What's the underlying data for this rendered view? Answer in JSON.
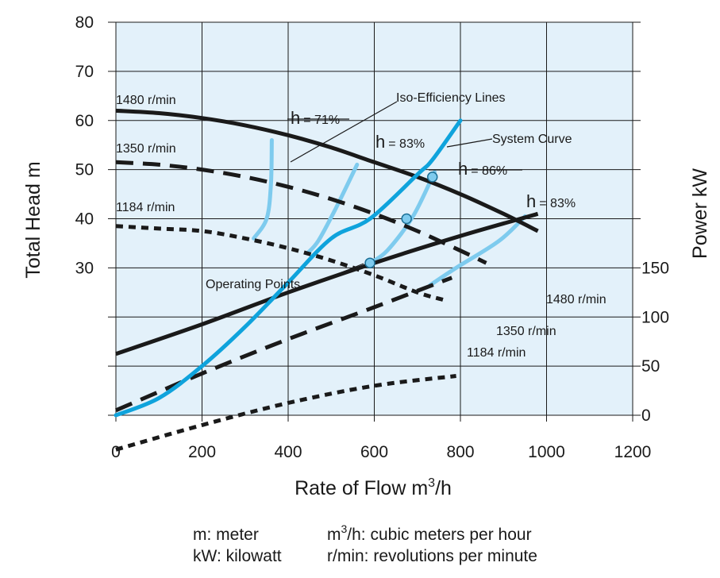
{
  "chart_data": {
    "type": "line",
    "title": "",
    "xlabel": "Rate of Flow m",
    "xlabel_sup": "3",
    "xlabel_tail": "/h",
    "ylabel": "Total Head m",
    "y2label": "Power kW",
    "xlim": [
      0,
      1200
    ],
    "ylim": [
      0,
      80
    ],
    "x_ticks": [
      "0",
      "200",
      "400",
      "600",
      "800",
      "1000",
      "1200"
    ],
    "y_ticks": [
      "30",
      "40",
      "50",
      "60",
      "70",
      "80"
    ],
    "y2_ticks": [
      "0",
      "50",
      "100",
      "150"
    ],
    "grid": true,
    "background": "#e3f1fa",
    "colors": {
      "speed": "#1a1a1a",
      "system": "#0fa3dc",
      "iso": "#7ecbee",
      "grid": "#1a1a1a"
    },
    "head_curves": [
      {
        "name": "1480 r/min",
        "style": "solid",
        "points": [
          [
            0,
            62
          ],
          [
            100,
            61.5
          ],
          [
            200,
            60.5
          ],
          [
            300,
            59
          ],
          [
            400,
            57
          ],
          [
            500,
            54.5
          ],
          [
            600,
            51.5
          ],
          [
            700,
            48.5
          ],
          [
            800,
            45
          ],
          [
            900,
            41
          ],
          [
            980,
            37.5
          ]
        ]
      },
      {
        "name": "1350 r/min",
        "style": "dashed",
        "points": [
          [
            0,
            51.5
          ],
          [
            100,
            51
          ],
          [
            200,
            50
          ],
          [
            300,
            48.5
          ],
          [
            400,
            46.5
          ],
          [
            500,
            44
          ],
          [
            600,
            41
          ],
          [
            700,
            37.5
          ],
          [
            800,
            33.5
          ],
          [
            860,
            31
          ]
        ]
      },
      {
        "name": "1184 r/min",
        "style": "dotted",
        "points": [
          [
            0,
            38.5
          ],
          [
            100,
            38
          ],
          [
            200,
            37.5
          ],
          [
            300,
            36
          ],
          [
            400,
            34
          ],
          [
            500,
            31.5
          ],
          [
            600,
            28.5
          ],
          [
            700,
            25
          ],
          [
            760,
            23.5
          ]
        ]
      }
    ],
    "power_curves": [
      {
        "name": "1480 r/min",
        "style": "solid",
        "points": [
          [
            0,
            12.5
          ],
          [
            200,
            18.5
          ],
          [
            400,
            25
          ],
          [
            600,
            31
          ],
          [
            800,
            36.5
          ],
          [
            980,
            41
          ]
        ]
      },
      {
        "name": "1350 r/min",
        "style": "dashed",
        "points": [
          [
            0,
            1
          ],
          [
            200,
            8.5
          ],
          [
            400,
            15.5
          ],
          [
            600,
            22
          ],
          [
            780,
            28
          ]
        ]
      },
      {
        "name": "1184 r/min",
        "style": "dotted",
        "points": [
          [
            0,
            -7
          ],
          [
            200,
            -2
          ],
          [
            400,
            2.5
          ],
          [
            600,
            6
          ],
          [
            790,
            8
          ]
        ]
      }
    ],
    "system_curve": {
      "name": "System Curve",
      "points": [
        [
          0,
          0
        ],
        [
          100,
          3.5
        ],
        [
          200,
          10
        ],
        [
          300,
          18
        ],
        [
          400,
          27
        ],
        [
          500,
          36
        ],
        [
          590,
          40
        ],
        [
          700,
          49
        ],
        [
          735,
          52
        ],
        [
          800,
          60
        ]
      ]
    },
    "iso_efficiency_lines": [
      {
        "label": "71%",
        "points": [
          [
            320,
            36
          ],
          [
            350,
            40
          ],
          [
            360,
            47
          ],
          [
            362,
            56
          ]
        ]
      },
      {
        "label": "83%",
        "points": [
          [
            445,
            33
          ],
          [
            470,
            35.5
          ],
          [
            510,
            42
          ],
          [
            560,
            51
          ]
        ]
      },
      {
        "label": "86%",
        "points": [
          [
            590,
            31
          ],
          [
            630,
            33.5
          ],
          [
            690,
            40.5
          ],
          [
            740,
            49.5
          ]
        ]
      },
      {
        "label": "83%",
        "points": [
          [
            730,
            26.5
          ],
          [
            790,
            30
          ],
          [
            890,
            35.5
          ],
          [
            950,
            40.5
          ]
        ]
      }
    ],
    "operating_points": [
      [
        590,
        31
      ],
      [
        675,
        40
      ],
      [
        735,
        48.5
      ]
    ],
    "annotations": {
      "iso_efficiency": "Iso-Efficiency Lines",
      "system_curve": "System Curve",
      "operating_points": "Operating Points",
      "eta_symbol": "h",
      "eta_71": "= 71%",
      "eta_83a": "= 83%",
      "eta_86": "= 86%",
      "eta_83b": "= 83%"
    }
  },
  "legend": {
    "m_def": "m: meter",
    "kw_def": "kW: kilowatt",
    "m3h_pre": "m",
    "m3h_sup": "3",
    "m3h_post": "/h: cubic meters per hour",
    "rmin_def": "r/min: revolutions per minute"
  }
}
